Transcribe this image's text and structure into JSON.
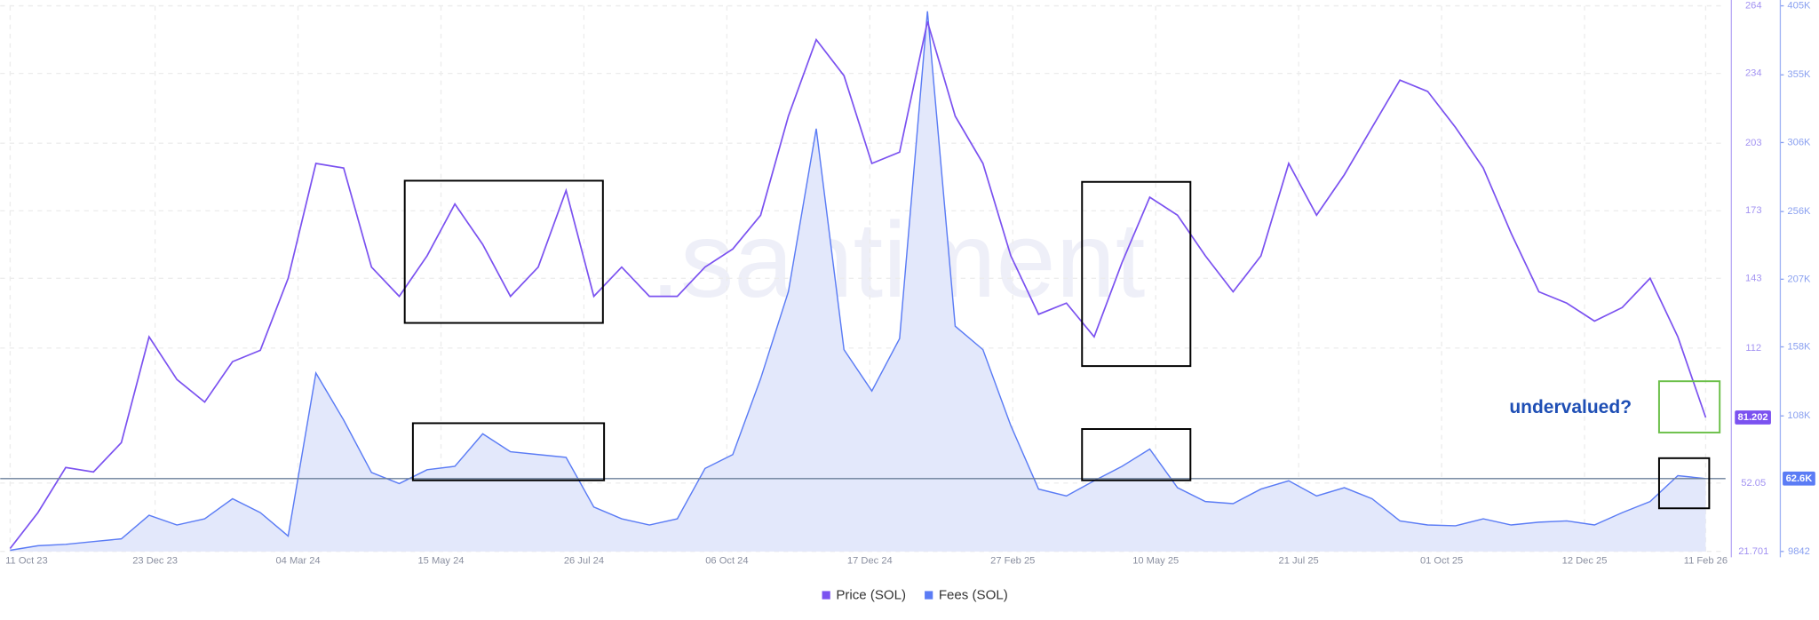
{
  "chart_data": {
    "type": "line",
    "watermark": ".santiment",
    "annotation": "undervalued?",
    "x": [
      "2023-10-11",
      "2023-10-25",
      "2023-11-08",
      "2023-11-22",
      "2023-12-06",
      "2023-12-20",
      "2024-01-03",
      "2024-01-17",
      "2024-01-31",
      "2024-02-14",
      "2024-02-28",
      "2024-03-13",
      "2024-03-27",
      "2024-04-10",
      "2024-04-24",
      "2024-05-08",
      "2024-05-22",
      "2024-06-05",
      "2024-06-19",
      "2024-07-03",
      "2024-07-17",
      "2024-07-31",
      "2024-08-14",
      "2024-08-28",
      "2024-09-11",
      "2024-09-25",
      "2024-10-09",
      "2024-10-23",
      "2024-11-06",
      "2024-11-20",
      "2024-12-04",
      "2024-12-18",
      "2025-01-01",
      "2025-01-15",
      "2025-01-29",
      "2025-02-12",
      "2025-02-26",
      "2025-03-12",
      "2025-03-26",
      "2025-04-09",
      "2025-04-23",
      "2025-05-07",
      "2025-05-21",
      "2025-06-04",
      "2025-06-18",
      "2025-07-02",
      "2025-07-16",
      "2025-07-30",
      "2025-08-13",
      "2025-08-27",
      "2025-09-10",
      "2025-09-24",
      "2025-10-08",
      "2025-10-22",
      "2025-11-05",
      "2025-11-19",
      "2025-12-03",
      "2025-12-17",
      "2025-12-31",
      "2026-01-14",
      "2026-01-28",
      "2026-02-11"
    ],
    "series": [
      {
        "name": "Price (SOL)",
        "color": "#7b52f0",
        "axis": "y",
        "values": [
          23,
          39,
          59,
          57,
          70,
          117,
          98,
          88,
          106,
          111,
          143,
          194,
          192,
          148,
          135,
          153,
          176,
          158,
          135,
          148,
          182,
          135,
          148,
          135,
          135,
          148,
          156,
          171,
          215,
          249,
          233,
          194,
          199,
          257,
          215,
          194,
          153,
          127,
          132,
          117,
          150,
          179,
          171,
          153,
          137,
          153,
          194,
          171,
          189,
          210,
          231,
          226,
          210,
          192,
          163,
          137,
          132,
          124,
          130,
          143,
          117,
          81.202
        ]
      },
      {
        "name": "Fees (SOL)",
        "color": "#5b7cf5",
        "axis": "y2",
        "last_label": "62.6K",
        "values": [
          10700,
          14000,
          15000,
          17000,
          19000,
          36000,
          29000,
          33500,
          48000,
          38000,
          21000,
          139000,
          105000,
          67000,
          59000,
          69000,
          71500,
          95000,
          82000,
          80000,
          78000,
          42000,
          33500,
          29000,
          33500,
          70000,
          80000,
          135000,
          198000,
          316000,
          156000,
          126000,
          164000,
          401000,
          173000,
          156000,
          101000,
          55000,
          50000,
          61000,
          71500,
          84000,
          56000,
          46000,
          44500,
          55000,
          61000,
          50000,
          56000,
          48000,
          32000,
          29000,
          28400,
          33500,
          29000,
          31000,
          32000,
          29000,
          38000,
          46000,
          64700,
          62600
        ]
      }
    ],
    "xlim": [
      "2023-10-06",
      "2026-02-21"
    ],
    "xticks": [
      {
        "value": "2023-10-11",
        "label": "11 Oct 23"
      },
      {
        "value": "2023-12-23",
        "label": "23 Dec 23"
      },
      {
        "value": "2024-03-04",
        "label": "04 Mar 24"
      },
      {
        "value": "2024-05-15",
        "label": "15 May 24"
      },
      {
        "value": "2024-07-26",
        "label": "26 Jul 24"
      },
      {
        "value": "2024-10-06",
        "label": "06 Oct 24"
      },
      {
        "value": "2024-12-17",
        "label": "17 Dec 24"
      },
      {
        "value": "2025-02-27",
        "label": "27 Feb 25"
      },
      {
        "value": "2025-05-10",
        "label": "10 May 25"
      },
      {
        "value": "2025-07-21",
        "label": "21 Jul 25"
      },
      {
        "value": "2025-10-01",
        "label": "01 Oct 25"
      },
      {
        "value": "2025-12-12",
        "label": "12 Dec 25"
      },
      {
        "value": "2026-02-11",
        "label": "11 Feb 26"
      }
    ],
    "ylim": [
      21.701,
      264
    ],
    "yticks": [
      21.701,
      52.05,
      112,
      143,
      173,
      203,
      234,
      264
    ],
    "y2lim": [
      9842,
      405000
    ],
    "y2ticks": [
      9842,
      {
        "value": 108000,
        "label": "108K"
      },
      {
        "value": 158000,
        "label": "158K"
      },
      {
        "value": 207000,
        "label": "207K"
      },
      {
        "value": 256000,
        "label": "256K"
      },
      {
        "value": 306000,
        "label": "306K"
      },
      {
        "value": 355000,
        "label": "355K"
      },
      {
        "value": 405000,
        "label": "405K"
      }
    ],
    "grid": true
  }
}
